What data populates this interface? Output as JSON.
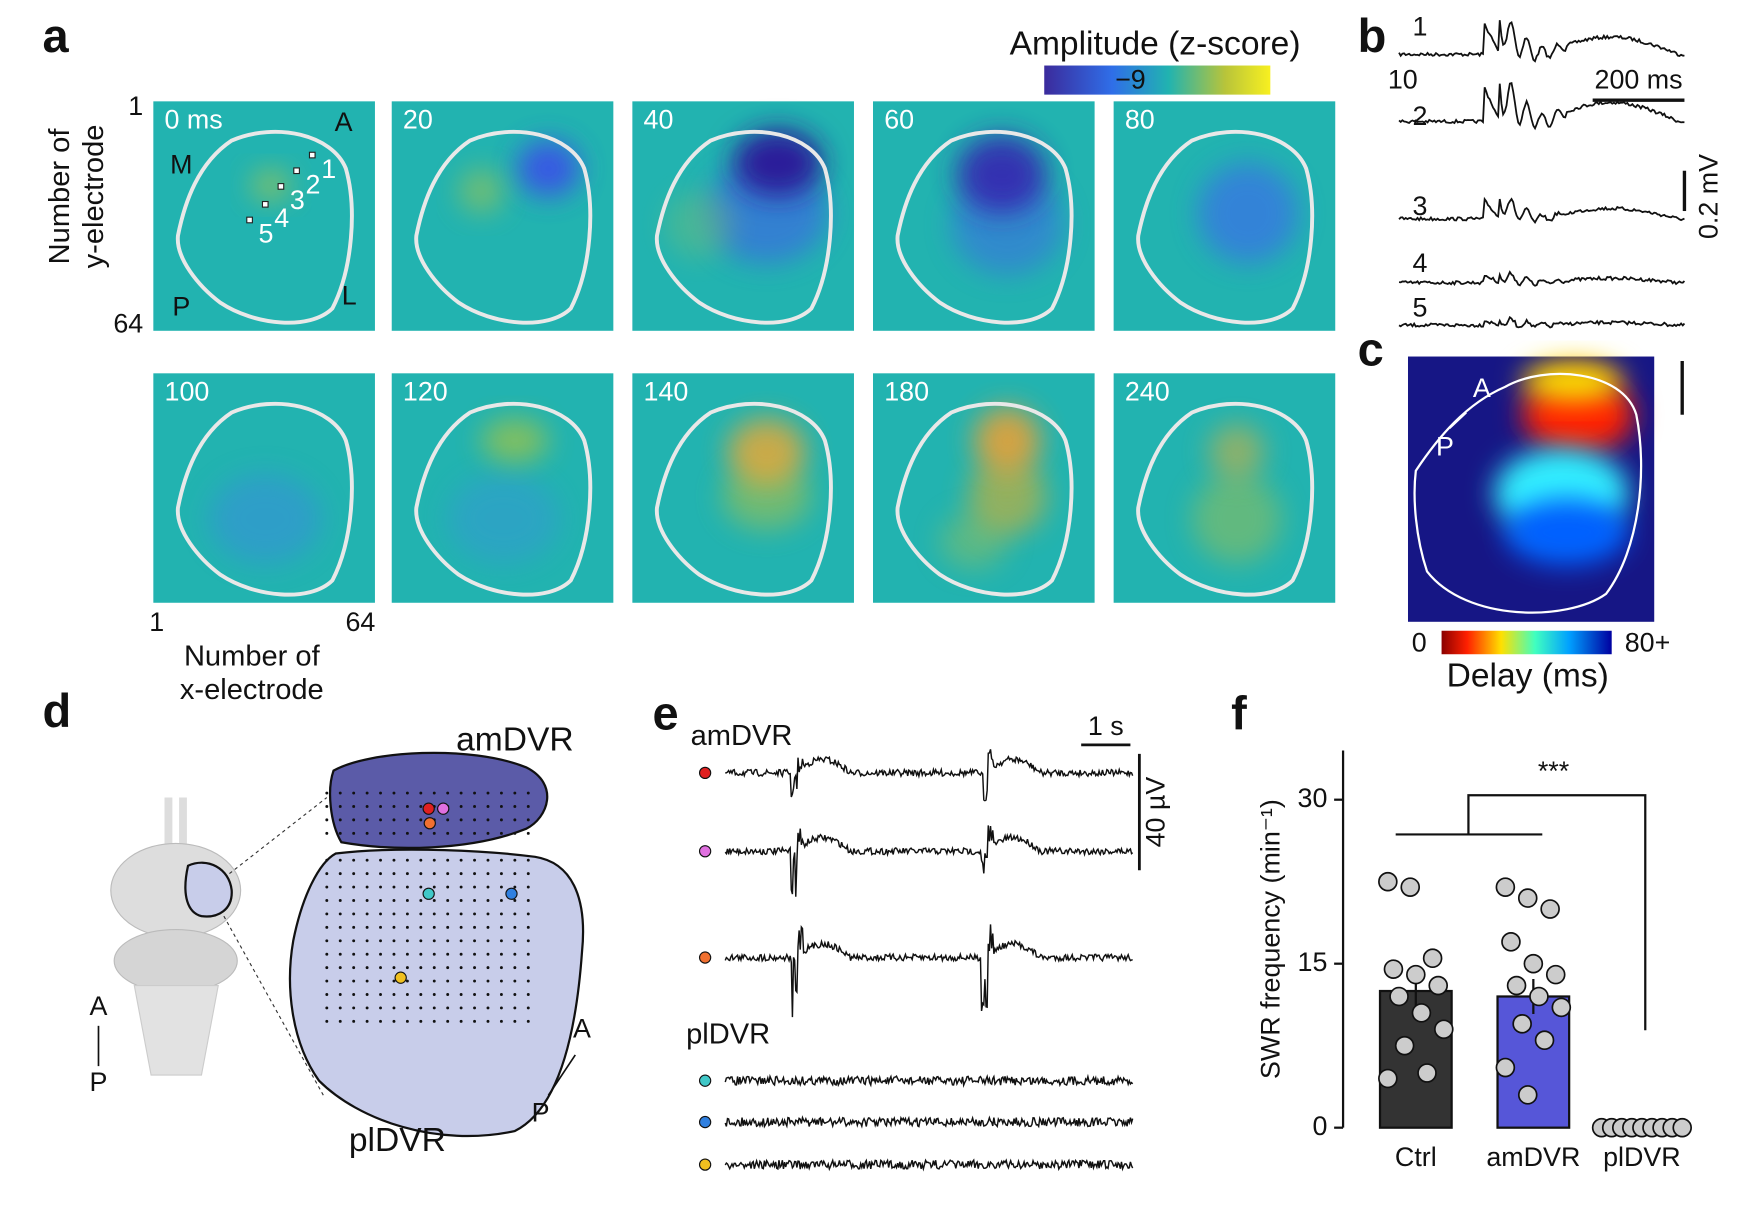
{
  "panel_a": {
    "label": "a",
    "colorbar_title": "Amplitude (z-score)",
    "colorbar_tick": "−9",
    "y_axis_label": [
      "Number of",
      "y-electrode"
    ],
    "x_axis_label": [
      "Number of",
      "x-electrode"
    ],
    "y_ticks": [
      "1",
      "64"
    ],
    "x_ticks": [
      "1",
      "64"
    ],
    "frames": [
      "0 ms",
      "20",
      "40",
      "60",
      "80",
      "100",
      "120",
      "140",
      "180",
      "240"
    ],
    "orientation": [
      "A",
      "M",
      "P",
      "L"
    ],
    "electrodes": [
      "1",
      "2",
      "3",
      "4",
      "5"
    ]
  },
  "panel_b": {
    "label": "b",
    "traces": [
      "1",
      "2",
      "3",
      "4",
      "5"
    ],
    "extra_label": "10",
    "time_scale": "200 ms",
    "voltage_scale": "0.2 mV"
  },
  "panel_c": {
    "label": "c",
    "axis": [
      "A",
      "P"
    ],
    "colorbar_min": "0",
    "colorbar_max": "80+",
    "colorbar_title": "Delay (ms)"
  },
  "panel_d": {
    "label": "d",
    "regions": [
      "amDVR",
      "plDVR"
    ],
    "axes_left": [
      "A",
      "P"
    ],
    "axes_right": [
      "A",
      "P"
    ]
  },
  "panel_e": {
    "label": "e",
    "groups": [
      "amDVR",
      "plDVR"
    ],
    "time_scale": "1 s",
    "voltage_scale": "40 µV"
  },
  "panel_f": {
    "label": "f"
  },
  "chart_data": {
    "type": "bar",
    "ylabel": "SWR frequency (min⁻¹)",
    "categories": [
      "Ctrl",
      "amDVR",
      "plDVR"
    ],
    "values": [
      12.5,
      12,
      0.1
    ],
    "errors": [
      1.5,
      1.6,
      0.05
    ],
    "colors": [
      "#333333",
      "#5656d8",
      "#ffffff"
    ],
    "points": [
      [
        22.5,
        22,
        15.5,
        14.5,
        14,
        13,
        12,
        10.5,
        9,
        7.5,
        5,
        4.5
      ],
      [
        22,
        21,
        20,
        17,
        15,
        14,
        13,
        12,
        11,
        9.5,
        8,
        5.5,
        3
      ],
      [
        0,
        0,
        0,
        0,
        0,
        0,
        0,
        0,
        0
      ]
    ],
    "ylim": [
      0,
      34.5
    ],
    "yticks": [
      0,
      15,
      30
    ],
    "significance": "***"
  }
}
